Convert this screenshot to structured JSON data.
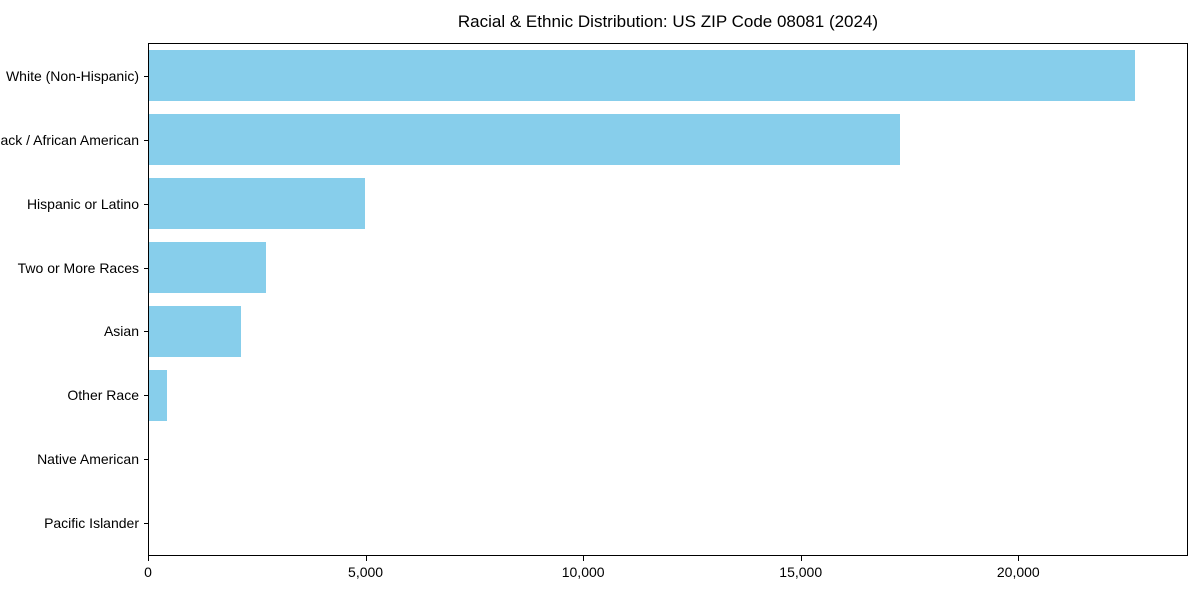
{
  "chart_data": {
    "type": "bar",
    "orientation": "horizontal",
    "title": "Racial & Ethnic Distribution: US ZIP Code 08081 (2024)",
    "categories": [
      "White (Non-Hispanic)",
      "Black / African American",
      "Hispanic or Latino",
      "Two or More Races",
      "Asian",
      "Other Race",
      "Native American",
      "Pacific Islander"
    ],
    "values": [
      22700,
      17300,
      4970,
      2690,
      2120,
      410,
      0,
      0
    ],
    "xlabel": "",
    "ylabel": "",
    "xlim": [
      0,
      23900
    ],
    "x_ticks": [
      0,
      5000,
      10000,
      15000,
      20000
    ],
    "x_tick_labels": [
      "0",
      "5,000",
      "10,000",
      "15,000",
      "20,000"
    ],
    "bar_color": "#87CEEB",
    "background_color": "#ffffff",
    "spine_color": "#000000",
    "grid": false,
    "legend_position": "none"
  }
}
